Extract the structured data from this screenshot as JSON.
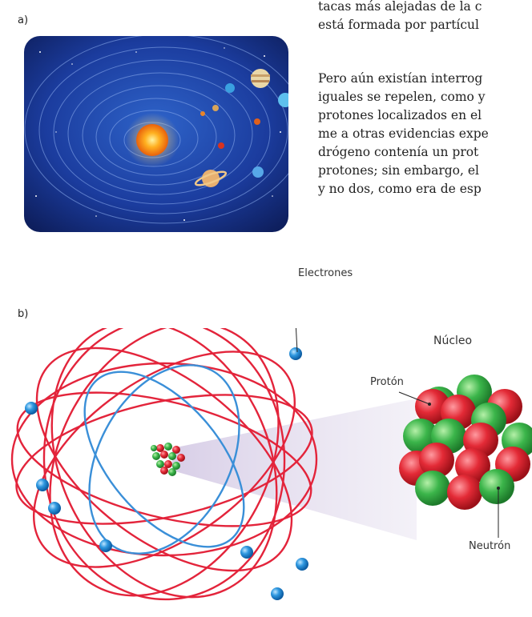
{
  "figure_a": {
    "label": "a)"
  },
  "text_top": {
    "lines": [
      "tacas más alejadas de la c",
      "está formada por partícul"
    ]
  },
  "text_body": {
    "lines": [
      "Pero aún existían interrog",
      "iguales se repelen, como y",
      "protones localizados en el",
      "me a otras evidencias expe",
      "drógeno contenía un prot",
      "protones; sin embargo, el",
      "y no dos, como era de esp"
    ]
  },
  "figure_b": {
    "label": "b)",
    "electrons_label": "Electrones",
    "nucleus_label": "Núcleo",
    "proton_label": "Protón",
    "neutron_label": "Neutrón"
  },
  "colors": {
    "space": "#1b3c9e",
    "sun": "#f7941d",
    "orbit_red": "#e3243b",
    "orbit_blue": "#3a8fd8",
    "electron": "#2f98e0",
    "proton": "#e32a36",
    "neutron": "#3bb54a"
  }
}
